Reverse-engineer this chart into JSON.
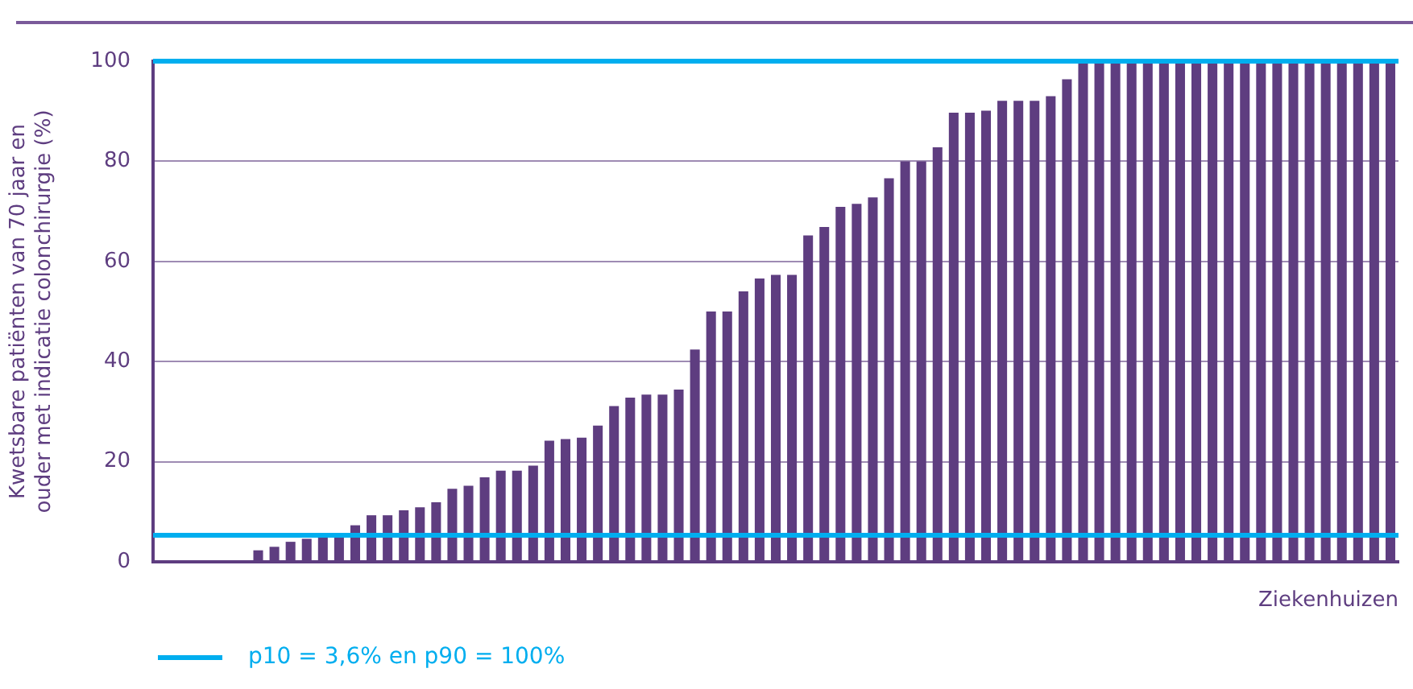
{
  "chart_data": {
    "type": "bar",
    "ylabel": "Kwetsbare patiënten van 70 jaar en ouder met indicatie colonchirurgie (%)",
    "xlabel": "Ziekenhuizen",
    "categories": [
      null,
      null,
      null,
      null,
      null,
      null,
      null,
      null,
      null,
      null,
      null,
      null,
      null,
      null,
      null,
      null,
      null,
      null,
      null,
      null,
      null,
      null,
      null,
      null,
      null,
      null,
      null,
      null,
      null,
      null,
      null,
      null,
      null,
      null,
      null,
      null,
      null,
      null,
      null,
      null,
      null,
      null,
      null,
      null,
      null,
      null,
      null,
      null,
      null,
      null,
      null,
      null,
      null,
      null,
      null,
      null,
      null,
      null,
      null,
      null,
      null,
      null,
      null,
      null,
      null,
      null,
      null,
      null,
      null,
      null,
      null,
      null,
      null,
      null,
      null,
      null,
      null
    ],
    "values": [
      0,
      0,
      0,
      0,
      0,
      0,
      2.3,
      3.0,
      4.0,
      4.6,
      5.3,
      5.3,
      7.3,
      9.3,
      9.3,
      10.3,
      10.9,
      11.9,
      14.6,
      15.2,
      16.9,
      18.2,
      18.2,
      19.2,
      24.2,
      24.5,
      24.8,
      27.2,
      31.1,
      32.8,
      33.4,
      33.4,
      34.4,
      42.4,
      50,
      50,
      54,
      56.6,
      57.3,
      57.3,
      65.2,
      66.9,
      70.9,
      71.5,
      72.8,
      76.6,
      80,
      80,
      82.8,
      89.7,
      89.7,
      90.1,
      92.1,
      92.1,
      92.1,
      93.0,
      96.4,
      100,
      100,
      100,
      100,
      100,
      100,
      100,
      100,
      100,
      100,
      100,
      100,
      100,
      100,
      100,
      100,
      100,
      100,
      100,
      100
    ],
    "color": "#5e3d80",
    "ylim": [
      0,
      100
    ],
    "yticks": [
      0,
      20,
      40,
      60,
      80,
      100
    ],
    "grid": "y",
    "legend": false,
    "ref_lines": [
      {
        "axis": "y",
        "value": 5.3,
        "color": "#00aeef"
      },
      {
        "axis": "y",
        "value": 100,
        "color": "#00aeef"
      }
    ],
    "annotations": [
      "p10 = 3,6% en p90 = 100%"
    ]
  }
}
